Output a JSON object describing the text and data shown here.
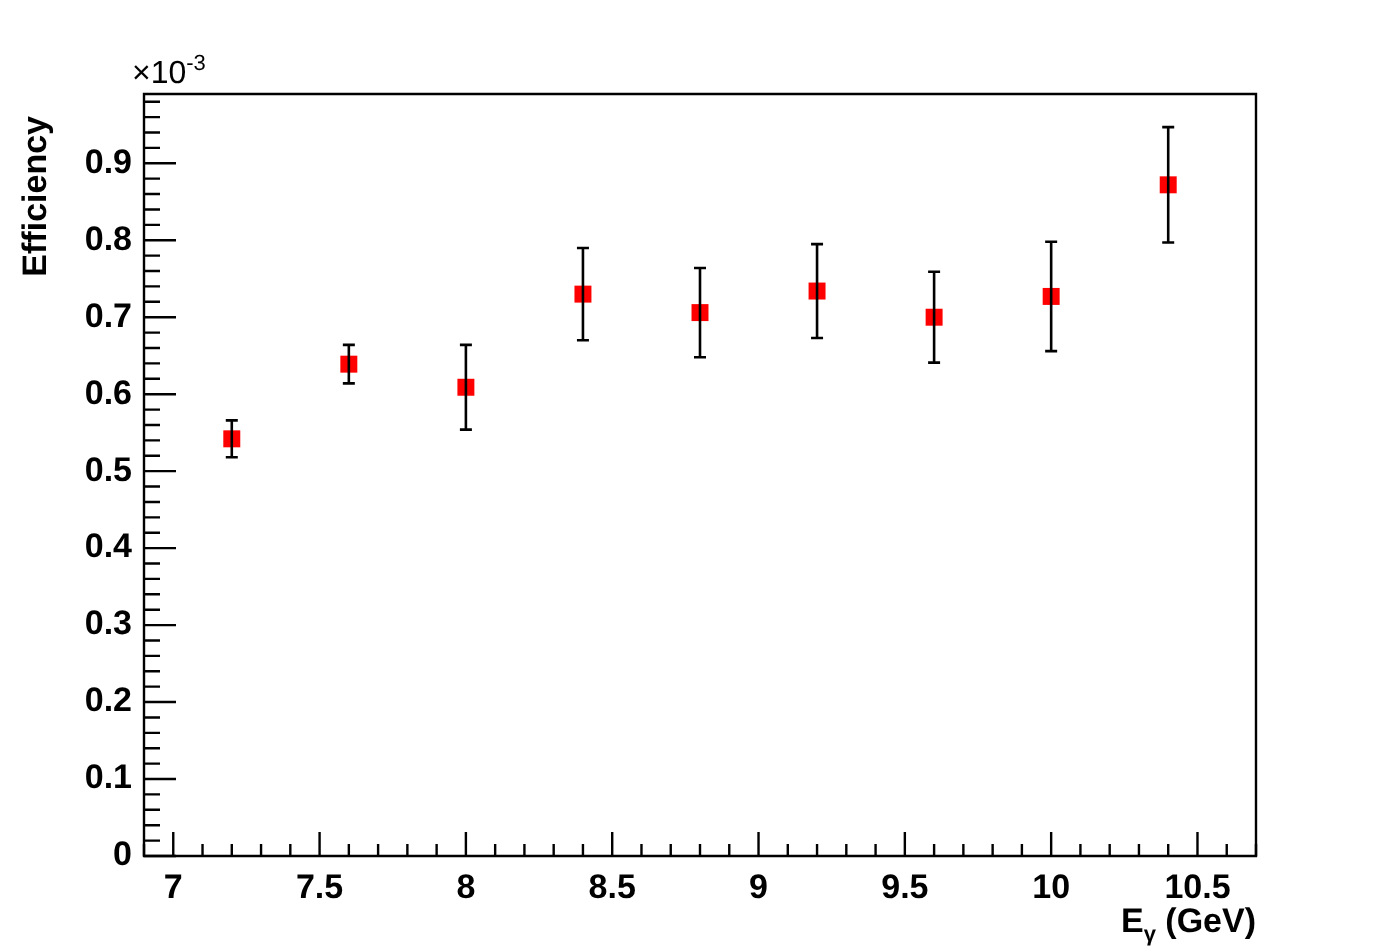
{
  "chart_data": {
    "type": "scatter",
    "xlabel": "E$_{γ}$ (GeV)",
    "ylabel": "Efficiency",
    "annotations": [
      "×10$^{-3}$"
    ],
    "x": [
      7.2,
      7.6,
      8.0,
      8.4,
      8.8,
      9.2,
      9.6,
      10.0,
      10.4
    ],
    "series": [
      {
        "color": "#ff0000",
        "values": [
          0.542,
          0.639,
          0.609,
          0.73,
          0.706,
          0.734,
          0.7,
          0.727,
          0.872
        ],
        "errors": [
          0.024,
          0.025,
          0.055,
          0.06,
          0.058,
          0.061,
          0.059,
          0.071,
          0.075
        ]
      }
    ],
    "xlim": [
      6.9,
      10.7
    ],
    "ylim": [
      0,
      0.99
    ],
    "xticks": [
      7,
      7.5,
      8,
      8.5,
      9,
      9.5,
      10,
      10.5
    ],
    "yticks": [
      0,
      0.1,
      0.2,
      0.3,
      0.4,
      0.5,
      0.6,
      0.7,
      0.8,
      0.9
    ],
    "grid": false,
    "legend": false,
    "marker": "square"
  }
}
